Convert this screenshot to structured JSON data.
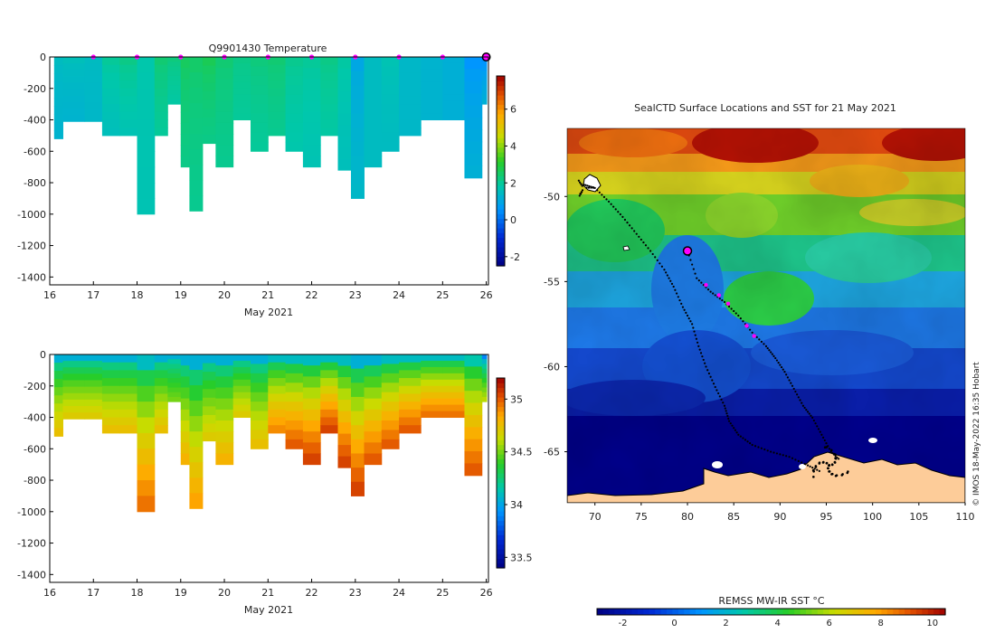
{
  "chart_data": [
    {
      "type": "heatmap",
      "title": "Q9901430  Temperature",
      "xlabel": "May 2021",
      "xticks": [
        "16",
        "17",
        "18",
        "19",
        "20",
        "21",
        "22",
        "23",
        "24",
        "25",
        "26"
      ],
      "xlim": [
        16,
        26.05
      ],
      "ylim": [
        -1450,
        0
      ],
      "yticks": [
        "0",
        "-200",
        "-400",
        "-600",
        "-800",
        "-1000",
        "-1200",
        "-1400"
      ],
      "colorbar": {
        "min": -2.5,
        "max": 7.8,
        "ticks": [
          "-2",
          "0",
          "2",
          "4",
          "6"
        ]
      },
      "profile_markers_days": [
        17,
        18,
        19,
        20,
        21,
        22,
        23,
        24,
        25
      ],
      "current_position_day": 26,
      "profiles": [
        {
          "day": 16.1,
          "depth": 520,
          "surface": 1.5,
          "deep": 1.3
        },
        {
          "day": 16.3,
          "depth": 410,
          "surface": 1.6,
          "deep": 1.3
        },
        {
          "day": 16.8,
          "depth": 410,
          "surface": 1.5,
          "deep": 1.4
        },
        {
          "day": 17.2,
          "depth": 500,
          "surface": 2.0,
          "deep": 1.6
        },
        {
          "day": 17.6,
          "depth": 500,
          "surface": 2.2,
          "deep": 1.7
        },
        {
          "day": 18.0,
          "depth": 1000,
          "surface": 1.8,
          "deep": 1.7
        },
        {
          "day": 18.4,
          "depth": 500,
          "surface": 2.4,
          "deep": 2.0
        },
        {
          "day": 18.7,
          "depth": 300,
          "surface": 2.3,
          "deep": 1.9
        },
        {
          "day": 19.0,
          "depth": 700,
          "surface": 2.6,
          "deep": 2.2
        },
        {
          "day": 19.2,
          "depth": 980,
          "surface": 2.5,
          "deep": 2.1
        },
        {
          "day": 19.5,
          "depth": 550,
          "surface": 2.7,
          "deep": 2.2
        },
        {
          "day": 19.8,
          "depth": 700,
          "surface": 2.4,
          "deep": 2.1
        },
        {
          "day": 20.2,
          "depth": 400,
          "surface": 2.2,
          "deep": 2.0
        },
        {
          "day": 20.6,
          "depth": 600,
          "surface": 2.3,
          "deep": 2.0
        },
        {
          "day": 21.0,
          "depth": 500,
          "surface": 2.4,
          "deep": 2.1
        },
        {
          "day": 21.4,
          "depth": 600,
          "surface": 2.1,
          "deep": 1.8
        },
        {
          "day": 21.8,
          "depth": 700,
          "surface": 2.0,
          "deep": 1.7
        },
        {
          "day": 22.2,
          "depth": 500,
          "surface": 2.2,
          "deep": 1.9
        },
        {
          "day": 22.6,
          "depth": 720,
          "surface": 1.9,
          "deep": 1.6
        },
        {
          "day": 22.9,
          "depth": 900,
          "surface": 1.0,
          "deep": 1.4
        },
        {
          "day": 23.2,
          "depth": 700,
          "surface": 1.5,
          "deep": 1.5
        },
        {
          "day": 23.6,
          "depth": 600,
          "surface": 1.7,
          "deep": 1.5
        },
        {
          "day": 24.0,
          "depth": 500,
          "surface": 1.4,
          "deep": 1.4
        },
        {
          "day": 24.5,
          "depth": 400,
          "surface": 1.3,
          "deep": 1.3
        },
        {
          "day": 25.0,
          "depth": 400,
          "surface": 1.2,
          "deep": 1.2
        },
        {
          "day": 25.5,
          "depth": 770,
          "surface": 0.6,
          "deep": 1.2
        },
        {
          "day": 25.9,
          "depth": 300,
          "surface": 0.4,
          "deep": 1.2
        }
      ]
    },
    {
      "type": "heatmap",
      "title": "",
      "xlabel": "May 2021",
      "xticks": [
        "16",
        "17",
        "18",
        "19",
        "20",
        "21",
        "22",
        "23",
        "24",
        "25",
        "26"
      ],
      "xlim": [
        16,
        26.05
      ],
      "ylim": [
        -1450,
        0
      ],
      "yticks": [
        "0",
        "-200",
        "-400",
        "-600",
        "-800",
        "-1000",
        "-1200",
        "-1400"
      ],
      "colorbar": {
        "min": 33.4,
        "max": 35.2,
        "ticks": [
          "33.5",
          "34",
          "34.5",
          "35"
        ]
      },
      "profiles": [
        {
          "day": 16.1,
          "depth": 520,
          "surface": 34.05,
          "deep": 34.75
        },
        {
          "day": 16.3,
          "depth": 410,
          "surface": 34.05,
          "deep": 34.7
        },
        {
          "day": 16.8,
          "depth": 410,
          "surface": 34.05,
          "deep": 34.7
        },
        {
          "day": 17.2,
          "depth": 500,
          "surface": 34.05,
          "deep": 34.75
        },
        {
          "day": 17.6,
          "depth": 500,
          "surface": 34.05,
          "deep": 34.75
        },
        {
          "day": 18.0,
          "depth": 1000,
          "surface": 34.1,
          "deep": 34.95
        },
        {
          "day": 18.4,
          "depth": 500,
          "surface": 34.05,
          "deep": 34.75
        },
        {
          "day": 18.7,
          "depth": 300,
          "surface": 34.05,
          "deep": 34.5
        },
        {
          "day": 19.0,
          "depth": 700,
          "surface": 34.05,
          "deep": 34.8
        },
        {
          "day": 19.2,
          "depth": 980,
          "surface": 34.05,
          "deep": 34.85
        },
        {
          "day": 19.5,
          "depth": 550,
          "surface": 34.05,
          "deep": 34.7
        },
        {
          "day": 19.8,
          "depth": 700,
          "surface": 34.05,
          "deep": 34.8
        },
        {
          "day": 20.2,
          "depth": 400,
          "surface": 34.05,
          "deep": 34.7
        },
        {
          "day": 20.6,
          "depth": 600,
          "surface": 34.05,
          "deep": 34.75
        },
        {
          "day": 21.0,
          "depth": 500,
          "surface": 34.1,
          "deep": 34.9
        },
        {
          "day": 21.4,
          "depth": 600,
          "surface": 34.1,
          "deep": 35.0
        },
        {
          "day": 21.8,
          "depth": 700,
          "surface": 34.1,
          "deep": 35.05
        },
        {
          "day": 22.2,
          "depth": 500,
          "surface": 34.1,
          "deep": 35.05
        },
        {
          "day": 22.6,
          "depth": 720,
          "surface": 34.1,
          "deep": 35.05
        },
        {
          "day": 22.9,
          "depth": 900,
          "surface": 34.05,
          "deep": 35.05
        },
        {
          "day": 23.2,
          "depth": 700,
          "surface": 34.05,
          "deep": 35.0
        },
        {
          "day": 23.6,
          "depth": 600,
          "surface": 34.1,
          "deep": 35.0
        },
        {
          "day": 24.0,
          "depth": 500,
          "surface": 34.1,
          "deep": 35.0
        },
        {
          "day": 24.5,
          "depth": 400,
          "surface": 34.1,
          "deep": 34.95
        },
        {
          "day": 25.0,
          "depth": 400,
          "surface": 34.1,
          "deep": 34.95
        },
        {
          "day": 25.5,
          "depth": 770,
          "surface": 34.15,
          "deep": 35.0
        },
        {
          "day": 25.9,
          "depth": 300,
          "surface": 33.9,
          "deep": 34.6
        }
      ]
    },
    {
      "type": "heatmap",
      "title": "SealCTD Surface Locations and SST for 21 May 2021",
      "xlim": [
        67,
        110
      ],
      "ylim": [
        -68,
        -46
      ],
      "xticks": [
        "70",
        "75",
        "80",
        "85",
        "90",
        "95",
        "100",
        "105",
        "110"
      ],
      "yticks": [
        "-50",
        "-55",
        "-60",
        "-65"
      ],
      "colorbar": {
        "label": "REMSS MW-IR SST °C",
        "min": -3,
        "max": 10.5,
        "ticks": [
          "-2",
          "0",
          "2",
          "4",
          "6",
          "8",
          "10"
        ]
      },
      "track_a": [
        [
          68.8,
          -49.3
        ],
        [
          70,
          -49.5
        ],
        [
          71.5,
          -50.3
        ],
        [
          73,
          -51.2
        ],
        [
          74.5,
          -52.2
        ],
        [
          76,
          -53.2
        ],
        [
          77.5,
          -54.3
        ],
        [
          78.5,
          -55.3
        ],
        [
          79.5,
          -56.5
        ],
        [
          80.5,
          -57.5
        ],
        [
          81.2,
          -58.8
        ],
        [
          82,
          -60
        ],
        [
          83,
          -61.2
        ],
        [
          84,
          -62.3
        ],
        [
          84.5,
          -63.2
        ],
        [
          85.5,
          -64
        ],
        [
          87,
          -64.6
        ],
        [
          89,
          -65
        ],
        [
          91,
          -65.3
        ],
        [
          93,
          -65.8
        ],
        [
          94.5,
          -66.2
        ]
      ],
      "track_b": [
        [
          80,
          -53.2
        ],
        [
          81,
          -54.8
        ],
        [
          82.5,
          -55.6
        ],
        [
          84,
          -56.2
        ],
        [
          85.5,
          -57
        ],
        [
          87,
          -58
        ],
        [
          88.5,
          -58.8
        ],
        [
          89.5,
          -59.5
        ],
        [
          90.5,
          -60.3
        ],
        [
          91.5,
          -61.3
        ],
        [
          92.5,
          -62.3
        ],
        [
          93.5,
          -63
        ],
        [
          94.5,
          -64
        ],
        [
          95.5,
          -65
        ],
        [
          96.5,
          -65.5
        ]
      ],
      "recent_positions": [
        [
          82,
          -55.2
        ],
        [
          83.4,
          -55.8
        ],
        [
          84.4,
          -56.3
        ],
        [
          86.4,
          -57.6
        ],
        [
          87.2,
          -58.2
        ]
      ],
      "deployment_location": [
        68.8,
        -49.5
      ],
      "current_location": [
        80,
        -53.2
      ],
      "watermark": "© IMOS 18-May-2022 16:35 Hobart"
    }
  ]
}
